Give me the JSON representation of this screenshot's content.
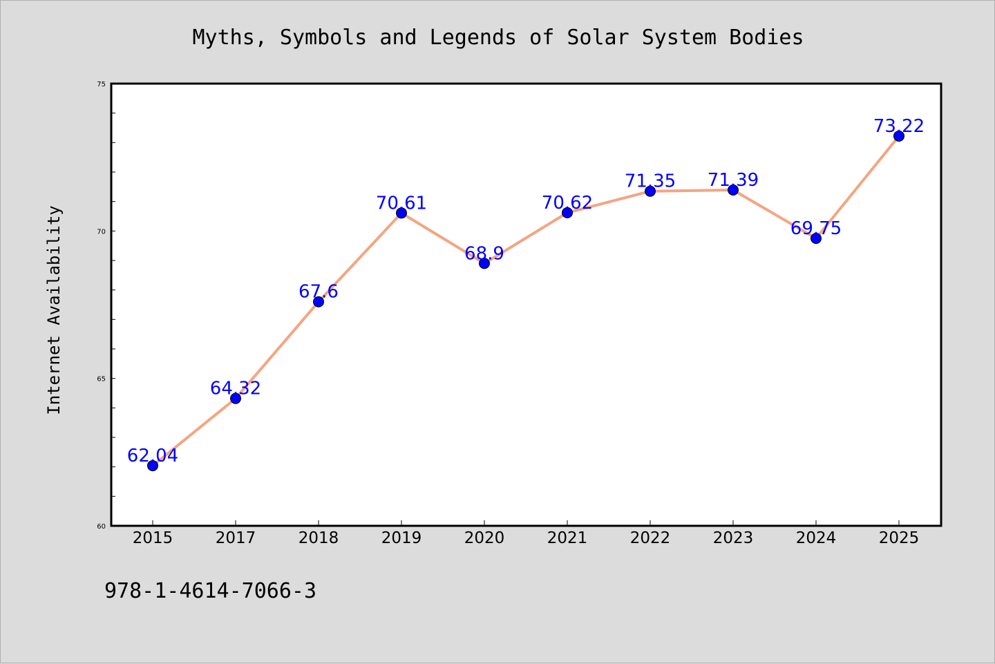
{
  "chart_data": {
    "type": "line",
    "title": "Myths, Symbols and Legends of Solar System Bodies",
    "xlabel": "",
    "ylabel": "Internet Availability",
    "categories": [
      "2015",
      "2017",
      "2018",
      "2019",
      "2020",
      "2021",
      "2022",
      "2023",
      "2024",
      "2025"
    ],
    "series": [
      {
        "values": [
          62.04,
          64.32,
          67.6,
          70.61,
          68.9,
          70.62,
          71.35,
          71.39,
          69.75,
          73.22
        ],
        "labels": [
          "62.04",
          "64.32",
          "67.6",
          "70.61",
          "68.9",
          "70.62",
          "71.35",
          "71.39",
          "69.75",
          "73.22"
        ],
        "line_color": "#f4a582",
        "marker_color": "#0000ff",
        "label_color": "#0000ff"
      }
    ],
    "ylim": [
      60,
      75
    ],
    "yticks": [
      "60",
      "65",
      "70",
      "75"
    ],
    "grid": false,
    "legend": "none"
  },
  "footer": {
    "text": "978-1-4614-7066-3"
  },
  "colors": {
    "background": "#dcdcdc",
    "plot_background": "#ffffff"
  }
}
